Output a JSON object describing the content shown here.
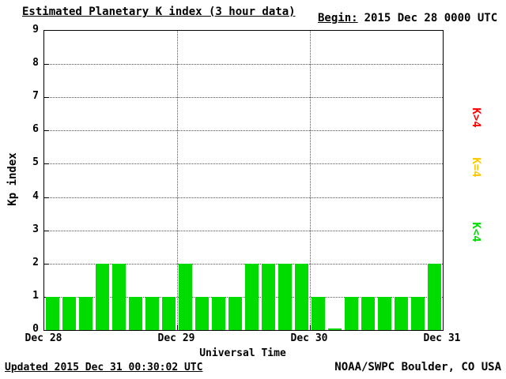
{
  "header": {
    "title": "Estimated Planetary K index (3 hour data)",
    "begin_prefix": "Begin:",
    "begin_value": "2015 Dec 28 0000 UTC"
  },
  "footer": {
    "updated": "Updated 2015 Dec 31 00:30:02 UTC",
    "source": "NOAA/SWPC Boulder, CO USA"
  },
  "chart_data": {
    "type": "bar",
    "title": "Estimated Planetary K index (3 hour data)",
    "xlabel": "Universal Time",
    "ylabel": "Kp index",
    "ylim": [
      0,
      9
    ],
    "y_ticks": [
      0,
      1,
      2,
      3,
      4,
      5,
      6,
      7,
      8,
      9
    ],
    "x_ticks": [
      "Dec 28",
      "Dec 29",
      "Dec 30",
      "Dec 31"
    ],
    "interval_hours": 3,
    "values": [
      1,
      1,
      1,
      2,
      2,
      1,
      1,
      1,
      2,
      1,
      1,
      1,
      2,
      2,
      2,
      2,
      1,
      0,
      1,
      1,
      1,
      1,
      1,
      2
    ],
    "bar_color": "#00DC00",
    "grid": "dotted",
    "legend_position": "right",
    "legend": [
      {
        "label": "K>4",
        "color": "#FF0000"
      },
      {
        "label": "K=4",
        "color": "#FFC800"
      },
      {
        "label": "K<4",
        "color": "#00DC00"
      }
    ]
  }
}
